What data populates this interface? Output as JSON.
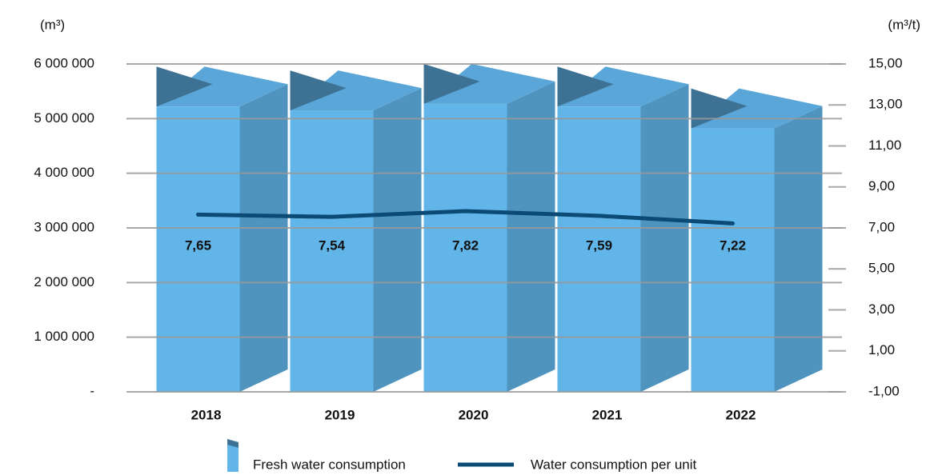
{
  "chart_data": {
    "type": "bar_line",
    "y_label": "(m³)",
    "y2_label": "(m³/t)",
    "categories": [
      "2018",
      "2019",
      "2020",
      "2021",
      "2022"
    ],
    "series": [
      {
        "name": "Fresh water consumption",
        "color": "#62b5e8",
        "values": [
          5220000,
          5150000,
          5270000,
          5220000,
          4820000
        ]
      },
      {
        "name": "Water consumption per unit",
        "color": "#0a4a75",
        "axis": "y2",
        "values": [
          7.65,
          7.54,
          7.82,
          7.59,
          7.22
        ],
        "value_labels": [
          "7,65",
          "7,54",
          "7,82",
          "7,59",
          "7,22"
        ]
      }
    ],
    "ylim": [
      0,
      6000000
    ],
    "yticks": [
      {
        "value": 0,
        "label": "-"
      },
      {
        "value": 1000000,
        "label": "1 000 000"
      },
      {
        "value": 2000000,
        "label": "2 000 000"
      },
      {
        "value": 3000000,
        "label": "3 000 000"
      },
      {
        "value": 4000000,
        "label": "4 000 000"
      },
      {
        "value": 5000000,
        "label": "5 000 000"
      },
      {
        "value": 6000000,
        "label": "6 000 000"
      }
    ],
    "y2lim": [
      -1,
      15
    ],
    "y2ticks": [
      {
        "value": -1,
        "label": "-1,00"
      },
      {
        "value": 1,
        "label": "1,00"
      },
      {
        "value": 3,
        "label": "3,00"
      },
      {
        "value": 5,
        "label": "5,00"
      },
      {
        "value": 7,
        "label": "7,00"
      },
      {
        "value": 9,
        "label": "9,00"
      },
      {
        "value": 11,
        "label": "11,00"
      },
      {
        "value": 13,
        "label": "13,00"
      },
      {
        "value": 15,
        "label": "15,00"
      }
    ],
    "grid": true
  }
}
